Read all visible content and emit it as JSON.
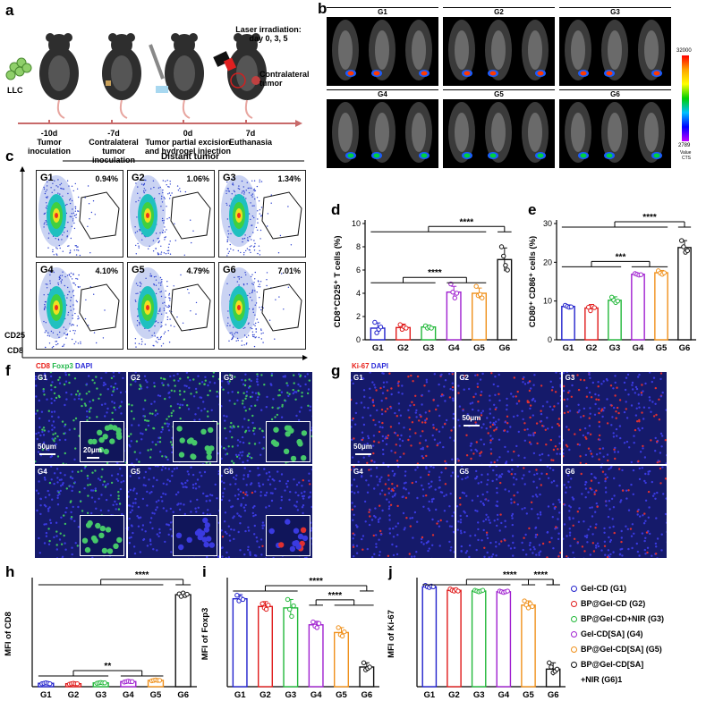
{
  "panels": {
    "a": "a",
    "b": "b",
    "c": "c",
    "d": "d",
    "e": "e",
    "f": "f",
    "g": "g",
    "h": "h",
    "i": "i",
    "j": "j"
  },
  "timeline": {
    "llc": "LLC",
    "laser": "Laser irradiation:",
    "laser_days": "day 0, 3, 5",
    "contralateral": "Contralateral",
    "tumor": "tumor",
    "steps": [
      {
        "day": "-10d",
        "text": "Tumor inoculation"
      },
      {
        "day": "-7d",
        "text": "Contralateral tumor inoculation"
      },
      {
        "day": "0d",
        "text": "Tumor partial excision and hydrogel injection"
      },
      {
        "day": "7d",
        "text": "Euthanasia"
      }
    ]
  },
  "bli": {
    "groups": [
      "G1",
      "G2",
      "G3",
      "G4",
      "G5",
      "G6"
    ],
    "scale_max": "32000",
    "scale_min": "2789",
    "scale_unit1": "Value",
    "scale_unit2": "CTS"
  },
  "flow": {
    "title": "Distant tumor",
    "ylabel": "CD25",
    "xlabel": "CD8",
    "samples": [
      {
        "g": "G1",
        "pct": "0.94%"
      },
      {
        "g": "G2",
        "pct": "1.06%"
      },
      {
        "g": "G3",
        "pct": "1.34%"
      },
      {
        "g": "G4",
        "pct": "4.10%"
      },
      {
        "g": "G5",
        "pct": "4.79%"
      },
      {
        "g": "G6",
        "pct": "7.01%"
      }
    ]
  },
  "ihc_f": {
    "legend": [
      "CD8",
      "Foxp3",
      "DAPI"
    ],
    "colors": [
      "#e8201a",
      "#21b84a",
      "#2a2ad8"
    ],
    "groups": [
      "G1",
      "G2",
      "G3",
      "G4",
      "G5",
      "G6"
    ],
    "scale_main": "50μm",
    "scale_inset": "20μm"
  },
  "ihc_g": {
    "legend": [
      "Ki-67",
      "DAPI"
    ],
    "colors": [
      "#e8201a",
      "#2a2ad8"
    ],
    "groups": [
      "G1",
      "G2",
      "G3",
      "G4",
      "G5",
      "G6"
    ],
    "scale_main": "50μm"
  },
  "legend_j": [
    {
      "label": "Gel-CD  (G1)",
      "color": "#2222cc"
    },
    {
      "label": "BP@Gel-CD (G2)",
      "color": "#e01b1b"
    },
    {
      "label": "BP@Gel-CD+NIR  (G3)",
      "color": "#22b83a"
    },
    {
      "label": "Gel-CD[SA]  (G4)",
      "color": "#a020d0"
    },
    {
      "label": "BP@Gel-CD[SA]  (G5)",
      "color": "#f0901a"
    },
    {
      "label": "BP@Gel-CD[SA]",
      "color": "#111111"
    },
    {
      "label": "+NIR  (G6)1",
      "color": "#111111"
    }
  ],
  "chart_data": [
    {
      "id": "d",
      "type": "bar",
      "categories": [
        "G1",
        "G2",
        "G3",
        "G4",
        "G5",
        "G6"
      ],
      "values": [
        1.0,
        1.05,
        1.1,
        4.1,
        4.0,
        6.9
      ],
      "errors": [
        0.45,
        0.3,
        0.15,
        0.5,
        0.45,
        1.0
      ],
      "points": [
        [
          1.5,
          0.6,
          0.9,
          1.1
        ],
        [
          1.3,
          0.9,
          1.1,
          1.0
        ],
        [
          1.2,
          1.0,
          1.1,
          1.0
        ],
        [
          4.8,
          4.1,
          3.6,
          4.0
        ],
        [
          4.6,
          3.8,
          3.9,
          3.6
        ],
        [
          8.0,
          7.2,
          6.4,
          6.0
        ]
      ],
      "ylabel": "CD8⁺CD25⁺ T cells (%)",
      "ylim": [
        0,
        10
      ],
      "yticks": [
        0,
        2,
        4,
        6,
        8,
        10
      ],
      "sig": [
        {
          "label": "****",
          "from": [
            0,
            1,
            2
          ],
          "to": [
            3,
            4
          ]
        },
        {
          "label": "****",
          "from": [
            0,
            1,
            2,
            3,
            4
          ],
          "to": [
            5
          ]
        }
      ]
    },
    {
      "id": "e",
      "type": "bar",
      "categories": [
        "G1",
        "G2",
        "G3",
        "G4",
        "G5",
        "G6"
      ],
      "values": [
        8.6,
        8.2,
        10.2,
        16.9,
        17.3,
        23.8
      ],
      "errors": [
        0.4,
        0.9,
        0.9,
        0.3,
        0.6,
        1.8
      ],
      "points": [
        [
          8.9,
          8.6,
          8.4,
          8.5
        ],
        [
          8.4,
          7.5,
          8.6,
          8.3
        ],
        [
          11.0,
          10.2,
          9.6,
          10.0
        ],
        [
          17.1,
          16.9,
          16.7,
          16.8
        ],
        [
          17.8,
          17.2,
          16.9,
          17.3
        ],
        [
          25.6,
          24.0,
          22.6,
          23.0
        ]
      ],
      "ylabel": "CD80⁺ CD86⁺ cells (%)",
      "ylim": [
        0,
        30
      ],
      "yticks": [
        0,
        10,
        20,
        30
      ],
      "sig": [
        {
          "label": "***",
          "from": [
            0,
            1,
            2
          ],
          "to": [
            3,
            4
          ]
        },
        {
          "label": "****",
          "from": [
            0,
            1,
            2,
            3,
            4
          ],
          "to": [
            5
          ]
        }
      ]
    },
    {
      "id": "h",
      "type": "bar",
      "categories": [
        "G1",
        "G2",
        "G3",
        "G4",
        "G5",
        "G6"
      ],
      "values": [
        8,
        7,
        9,
        12,
        15,
        218
      ],
      "errors": [
        2,
        2,
        2,
        2,
        2,
        4
      ],
      "points": [
        [
          7,
          8,
          9,
          8,
          7
        ],
        [
          6,
          7,
          8,
          7,
          7
        ],
        [
          8,
          9,
          10,
          9,
          9
        ],
        [
          11,
          12,
          13,
          12,
          12
        ],
        [
          14,
          15,
          16,
          15,
          15
        ],
        [
          220,
          214,
          222,
          216,
          219
        ]
      ],
      "ylabel": "MFI of CD8",
      "ylim": [
        0,
        250
      ],
      "yticks": [],
      "sig": [
        {
          "label": "**",
          "from": [
            0,
            1,
            2
          ],
          "to": [
            3,
            4
          ]
        },
        {
          "label": "****",
          "from": [
            0,
            1,
            2,
            3,
            4
          ],
          "to": [
            5
          ]
        }
      ]
    },
    {
      "id": "i",
      "type": "bar",
      "categories": [
        "G1",
        "G2",
        "G3",
        "G4",
        "G5",
        "G6"
      ],
      "values": [
        125,
        114,
        112,
        88,
        77,
        28
      ],
      "errors": [
        6,
        7,
        12,
        5,
        7,
        6
      ],
      "points": [
        [
          130,
          122,
          126,
          124
        ],
        [
          118,
          112,
          110,
          116
        ],
        [
          124,
          110,
          100,
          115
        ],
        [
          92,
          86,
          84,
          90
        ],
        [
          84,
          74,
          72,
          78
        ],
        [
          34,
          24,
          26,
          28
        ]
      ],
      "ylabel": "MFI of Foxp3",
      "ylim": [
        0,
        150
      ],
      "yticks": [],
      "sig": [
        {
          "label": "****",
          "from": [
            0,
            1,
            2
          ],
          "to": [
            5
          ]
        },
        {
          "label": "****",
          "from": [
            3
          ],
          "to": [
            4,
            5
          ]
        }
      ]
    },
    {
      "id": "j",
      "type": "bar",
      "categories": [
        "G1",
        "G2",
        "G3",
        "G4",
        "G5",
        "G6"
      ],
      "values": [
        142,
        137,
        136,
        135,
        116,
        25
      ],
      "errors": [
        2,
        3,
        2,
        2,
        6,
        9
      ],
      "points": [
        [
          144,
          142,
          141,
          143,
          142
        ],
        [
          139,
          137,
          136,
          138,
          136
        ],
        [
          137,
          136,
          135,
          136,
          137
        ],
        [
          136,
          135,
          134,
          135,
          136
        ],
        [
          122,
          116,
          112,
          118,
          114
        ],
        [
          34,
          28,
          20,
          22,
          25
        ]
      ],
      "ylabel": "MFI of Ki-67",
      "ylim": [
        0,
        150
      ],
      "yticks": [],
      "sig": [
        {
          "label": "****",
          "from": [
            0,
            1,
            2,
            3
          ],
          "to": [
            5
          ]
        },
        {
          "label": "****",
          "from": [
            4
          ],
          "to": [
            5
          ]
        }
      ]
    }
  ],
  "bar_colors": [
    "#2222cc",
    "#e01b1b",
    "#22b83a",
    "#a020d0",
    "#f0901a",
    "#111111"
  ]
}
